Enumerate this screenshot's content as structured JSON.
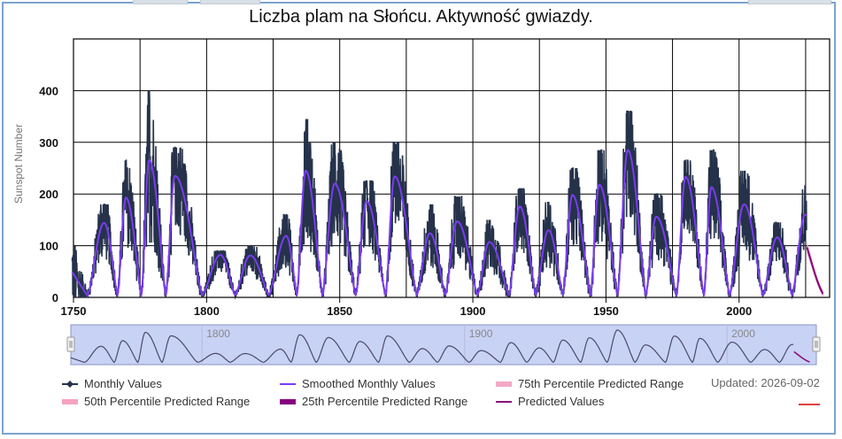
{
  "title": "Liczba plam na Słońcu. Aktywność gwiazdy.",
  "updated_text": "Updated: 2026-09-02",
  "colors": {
    "monthly": "#25324a",
    "smoothed": "#7a3cf0",
    "predicted": "#8a0a7a",
    "p75": "#f2a9c8",
    "p50": "#f5a3c0",
    "p25": "#860080",
    "navigator_fill": "#c8d2f5",
    "navigator_line": "#4a4a6a",
    "frame": "#7ca3cf"
  },
  "legend": [
    {
      "label": "Monthly Values",
      "symbol": "line-diamond",
      "color": "#25324a"
    },
    {
      "label": "Smoothed Monthly Values",
      "symbol": "line",
      "color": "#7a3cf0"
    },
    {
      "label": "75th Percentile Predicted Range",
      "symbol": "block",
      "color": "#f2a9c8"
    },
    {
      "label": "50th Percentile Predicted Range",
      "symbol": "block",
      "color": "#f5a3c0"
    },
    {
      "label": "25th Percentile Predicted Range",
      "symbol": "block",
      "color": "#860080"
    },
    {
      "label": "Predicted Values",
      "symbol": "line",
      "color": "#8a0a7a"
    }
  ],
  "chart_data": {
    "type": "line",
    "title": "Liczba plam na Słońcu. Aktywność gwiazdy.",
    "xlabel": "",
    "ylabel": "Sunspot Number",
    "xlim": [
      1750,
      2034
    ],
    "ylim": [
      0,
      500
    ],
    "x_ticks": [
      1750,
      1800,
      1850,
      1900,
      1950,
      2000
    ],
    "y_ticks": [
      0,
      100,
      200,
      300,
      400
    ],
    "grid": true,
    "legend_position": "bottom",
    "navigator": {
      "labels": [
        1800,
        1900,
        2000
      ]
    },
    "cycles": [
      {
        "min_year": 1755.2,
        "max_year": 1761.5,
        "smoothed_max": 144,
        "monthly_peak": 180
      },
      {
        "min_year": 1766.5,
        "max_year": 1769.7,
        "smoothed_max": 193,
        "monthly_peak": 265
      },
      {
        "min_year": 1775.5,
        "max_year": 1778.4,
        "smoothed_max": 265,
        "monthly_peak": 400
      },
      {
        "min_year": 1784.7,
        "max_year": 1788.1,
        "smoothed_max": 235,
        "monthly_peak": 290
      },
      {
        "min_year": 1798.3,
        "max_year": 1805.2,
        "smoothed_max": 82,
        "monthly_peak": 90
      },
      {
        "min_year": 1810.6,
        "max_year": 1816.4,
        "smoothed_max": 81,
        "monthly_peak": 100
      },
      {
        "min_year": 1823.3,
        "max_year": 1829.9,
        "smoothed_max": 119,
        "monthly_peak": 160
      },
      {
        "min_year": 1833.9,
        "max_year": 1837.2,
        "smoothed_max": 245,
        "monthly_peak": 345
      },
      {
        "min_year": 1843.5,
        "max_year": 1848.1,
        "smoothed_max": 220,
        "monthly_peak": 300
      },
      {
        "min_year": 1856.0,
        "max_year": 1860.1,
        "smoothed_max": 186,
        "monthly_peak": 225
      },
      {
        "min_year": 1867.2,
        "max_year": 1870.6,
        "smoothed_max": 234,
        "monthly_peak": 300
      },
      {
        "min_year": 1878.9,
        "max_year": 1883.9,
        "smoothed_max": 124,
        "monthly_peak": 180
      },
      {
        "min_year": 1889.6,
        "max_year": 1894.1,
        "smoothed_max": 147,
        "monthly_peak": 195
      },
      {
        "min_year": 1901.7,
        "max_year": 1906.2,
        "smoothed_max": 107,
        "monthly_peak": 150
      },
      {
        "min_year": 1913.6,
        "max_year": 1917.6,
        "smoothed_max": 176,
        "monthly_peak": 210
      },
      {
        "min_year": 1923.6,
        "max_year": 1928.4,
        "smoothed_max": 130,
        "monthly_peak": 185
      },
      {
        "min_year": 1933.8,
        "max_year": 1937.4,
        "smoothed_max": 198,
        "monthly_peak": 250
      },
      {
        "min_year": 1944.2,
        "max_year": 1947.5,
        "smoothed_max": 218,
        "monthly_peak": 285
      },
      {
        "min_year": 1954.3,
        "max_year": 1958.2,
        "smoothed_max": 285,
        "monthly_peak": 360
      },
      {
        "min_year": 1964.9,
        "max_year": 1968.9,
        "smoothed_max": 156,
        "monthly_peak": 200
      },
      {
        "min_year": 1976.5,
        "max_year": 1979.9,
        "smoothed_max": 233,
        "monthly_peak": 265
      },
      {
        "min_year": 1986.8,
        "max_year": 1989.6,
        "smoothed_max": 213,
        "monthly_peak": 285
      },
      {
        "min_year": 1996.4,
        "max_year": 2001.9,
        "smoothed_max": 180,
        "monthly_peak": 245
      },
      {
        "min_year": 2008.9,
        "max_year": 2014.3,
        "smoothed_max": 116,
        "monthly_peak": 145
      },
      {
        "min_year": 2019.9,
        "max_year": 2024.8,
        "smoothed_max": 160,
        "monthly_peak": 216
      }
    ],
    "predicted_values": {
      "years": [
        2025.5,
        2026.5,
        2027.5,
        2028.5,
        2029.5,
        2030.5,
        2031.5
      ],
      "values": [
        97,
        80,
        62,
        45,
        30,
        17,
        7
      ]
    }
  }
}
